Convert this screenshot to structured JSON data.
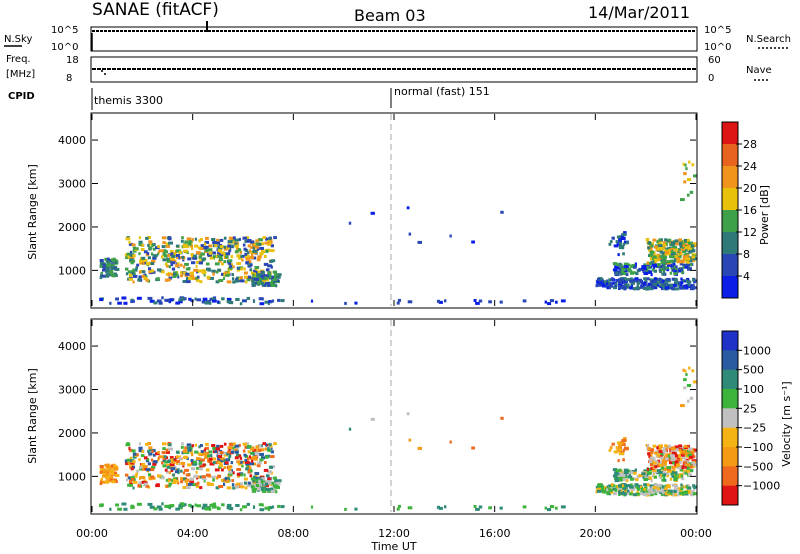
{
  "header": {
    "station": "SANAE (fitACF)",
    "beam": "Beam 03",
    "date": "14/Mar/2011"
  },
  "strips": {
    "nsky_label": "N.Sky",
    "nsky_ticks": [
      "10^5",
      "10^0"
    ],
    "nsearch_label": "N.Search",
    "nsearch_ticks": [
      "10^5",
      "10^0"
    ],
    "freq_label": "Freq.",
    "freq_unit": "[MHz]",
    "freq_ticks": [
      "18",
      "8"
    ],
    "nave_label": "Nave",
    "nave_ticks": [
      "60",
      "0"
    ],
    "cpid_label": "CPID",
    "cpid_segments": [
      "themis 3300",
      "normal (fast) 151"
    ]
  },
  "colors": {
    "power_scale": [
      "#0a1ee6",
      "#2846b4",
      "#2f7a78",
      "#3fa04a",
      "#e8c20a",
      "#f0941e",
      "#e8641e",
      "#dc1414"
    ],
    "velocity_scale": [
      "#e01414",
      "#f06a1e",
      "#f59a14",
      "#f5b414",
      "#c0c0c0",
      "#3cb43c",
      "#2f8a78",
      "#2a5aa0",
      "#1e32c8"
    ]
  },
  "chart_data": [
    {
      "type": "heatmap",
      "title": "Power",
      "xlabel": "",
      "ylabel": "Slant Range [km]",
      "ylim": [
        180,
        4600
      ],
      "xlim": [
        0,
        24
      ],
      "yticks": [
        "4000",
        "3000",
        "2000",
        "1000"
      ],
      "colorbar_label": "Power [dB]",
      "colorbar_ticks": [
        "28",
        "24",
        "20",
        "16",
        "12",
        "8",
        "4"
      ],
      "clim": [
        0,
        32
      ]
    },
    {
      "type": "heatmap",
      "title": "Velocity",
      "xlabel": "Time UT",
      "ylabel": "Slant Range [km]",
      "ylim": [
        180,
        4600
      ],
      "xlim": [
        0,
        24
      ],
      "xticks": [
        "00:00",
        "04:00",
        "08:00",
        "12:00",
        "16:00",
        "20:00",
        "00:00"
      ],
      "yticks": [
        "4000",
        "3000",
        "2000",
        "1000"
      ],
      "colorbar_label": "Velocity [m s⁻¹]",
      "colorbar_ticks": [
        "1000",
        "500",
        "100",
        "25",
        "−25",
        "−100",
        "−500",
        "−1000"
      ]
    }
  ]
}
